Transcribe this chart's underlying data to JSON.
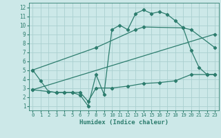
{
  "line1_x": [
    0,
    1,
    2,
    3,
    4,
    5,
    6,
    7,
    8,
    9,
    10,
    11,
    12,
    13,
    14,
    15,
    16,
    17,
    18,
    19,
    20,
    21,
    22,
    23
  ],
  "line1_y": [
    5.0,
    3.8,
    2.6,
    2.5,
    2.5,
    2.5,
    2.2,
    1.0,
    4.5,
    2.3,
    9.5,
    10.0,
    9.5,
    11.3,
    11.7,
    11.3,
    11.5,
    11.2,
    10.5,
    9.7,
    7.2,
    5.3,
    4.5,
    4.5
  ],
  "line2_x": [
    0,
    8,
    13,
    14,
    19,
    20,
    23
  ],
  "line2_y": [
    5.0,
    7.5,
    9.5,
    9.8,
    9.7,
    9.5,
    7.5
  ],
  "line3_x": [
    0,
    23
  ],
  "line3_y": [
    2.8,
    9.0
  ],
  "line4_x": [
    0,
    2,
    3,
    4,
    5,
    6,
    7,
    8,
    10,
    12,
    14,
    16,
    18,
    20,
    22,
    23
  ],
  "line4_y": [
    2.8,
    2.6,
    2.5,
    2.5,
    2.5,
    2.5,
    1.5,
    3.0,
    3.0,
    3.2,
    3.5,
    3.6,
    3.8,
    4.5,
    4.5,
    4.5
  ],
  "color": "#2d7d6e",
  "bg_color": "#cce8e8",
  "grid_color": "#aad0d0",
  "xlabel": "Humidex (Indice chaleur)",
  "xlim": [
    -0.5,
    23.5
  ],
  "ylim": [
    0.5,
    12.5
  ],
  "xticks": [
    0,
    1,
    2,
    3,
    4,
    5,
    6,
    7,
    8,
    9,
    10,
    11,
    12,
    13,
    14,
    15,
    16,
    17,
    18,
    19,
    20,
    21,
    22,
    23
  ],
  "yticks": [
    1,
    2,
    3,
    4,
    5,
    6,
    7,
    8,
    9,
    10,
    11,
    12
  ]
}
